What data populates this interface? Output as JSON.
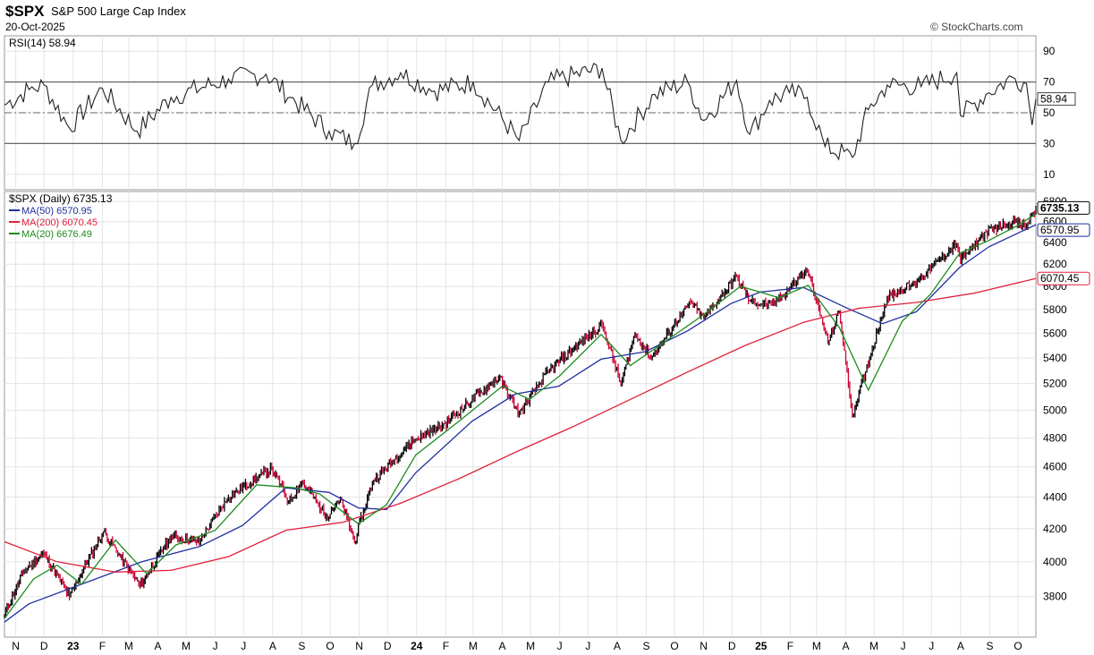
{
  "header": {
    "ticker": "$SPX",
    "name": "S&P 500 Large Cap Index",
    "date": "20-Oct-2025",
    "credit": "© StockCharts.com"
  },
  "colors": {
    "price_up": "#000000",
    "price_down": "#cc0033",
    "ma50": "#1f2fa0",
    "ma200": "#e0203c",
    "ma20": "#1e8a1e",
    "rsi_line": "#222222",
    "rsi_fill": "#4a7a4a",
    "grid": "#e4e4e4"
  },
  "chart_data": [
    {
      "type": "line",
      "title": "RSI(14) 58.94",
      "series": [
        {
          "name": "RSI(14)",
          "x": [
            "2022-10-20",
            "2022-11-15",
            "2022-12-01",
            "2022-12-28",
            "2023-02-01",
            "2023-03-10",
            "2023-04-15",
            "2023-06-15",
            "2023-07-25",
            "2023-08-20",
            "2023-09-30",
            "2023-10-27",
            "2023-11-15",
            "2023-12-15",
            "2024-01-20",
            "2024-03-01",
            "2024-04-19",
            "2024-05-20",
            "2024-07-16",
            "2024-08-05",
            "2024-09-10",
            "2024-10-15",
            "2024-11-01",
            "2024-12-06",
            "2024-12-20",
            "2025-01-10",
            "2025-01-31",
            "2025-02-19",
            "2025-03-10",
            "2025-04-08",
            "2025-04-25",
            "2025-05-15",
            "2025-06-20",
            "2025-07-28",
            "2025-08-01",
            "2025-08-28",
            "2025-09-25",
            "2025-10-10",
            "2025-10-16",
            "2025-10-20"
          ],
          "values": [
            55,
            65,
            68,
            40,
            66,
            38,
            60,
            72,
            75,
            60,
            38,
            30,
            68,
            76,
            64,
            70,
            32,
            70,
            79,
            32,
            62,
            70,
            45,
            71,
            36,
            58,
            63,
            60,
            28,
            21,
            52,
            68,
            67,
            76,
            48,
            62,
            73,
            69,
            42,
            58.94
          ]
        }
      ],
      "yticks": [
        10,
        30,
        50,
        70,
        90
      ],
      "ylim": [
        0,
        100
      ],
      "overbought": 70,
      "oversold": 30,
      "midline": 50,
      "last_value_label": "58.94"
    },
    {
      "type": "line",
      "title": "$SPX (Daily) 6735.13",
      "ylim": [
        3580,
        6900
      ],
      "yscale": "log",
      "yticks": [
        3800,
        4000,
        4200,
        4400,
        4600,
        4800,
        5000,
        5200,
        5400,
        5600,
        5800,
        6000,
        6200,
        6400,
        6600,
        6800
      ],
      "xtick_labels": [
        "N",
        "D",
        "23",
        "F",
        "M",
        "A",
        "M",
        "J",
        "J",
        "A",
        "S",
        "O",
        "N",
        "D",
        "24",
        "F",
        "M",
        "A",
        "M",
        "J",
        "J",
        "A",
        "S",
        "O",
        "N",
        "D",
        "25",
        "F",
        "M",
        "A",
        "M",
        "J",
        "J",
        "A",
        "S",
        "O"
      ],
      "xtick_dates": [
        "2022-11-01",
        "2022-12-01",
        "2023-01-01",
        "2023-02-01",
        "2023-03-01",
        "2023-04-01",
        "2023-05-01",
        "2023-06-01",
        "2023-07-01",
        "2023-08-01",
        "2023-09-01",
        "2023-10-01",
        "2023-11-01",
        "2023-12-01",
        "2024-01-01",
        "2024-02-01",
        "2024-03-01",
        "2024-04-01",
        "2024-05-01",
        "2024-06-01",
        "2024-07-01",
        "2024-08-01",
        "2024-09-01",
        "2024-10-01",
        "2024-11-01",
        "2024-12-01",
        "2025-01-01",
        "2025-02-01",
        "2025-03-01",
        "2025-04-01",
        "2025-05-01",
        "2025-06-01",
        "2025-07-01",
        "2025-08-01",
        "2025-09-01",
        "2025-10-01"
      ],
      "xlim": [
        "2022-10-20",
        "2025-10-20"
      ],
      "legend": [
        {
          "label": "MA(50) 6570.95",
          "color": "#1f2fa0"
        },
        {
          "label": "MA(200) 6070.45",
          "color": "#e0203c"
        },
        {
          "label": "MA(20) 6676.49",
          "color": "#1e8a1e"
        }
      ],
      "series": [
        {
          "name": "$SPX (Daily)",
          "x": [
            "2022-10-20",
            "2022-11-10",
            "2022-12-01",
            "2022-12-28",
            "2023-02-02",
            "2023-03-13",
            "2023-04-15",
            "2023-05-15",
            "2023-06-15",
            "2023-07-31",
            "2023-08-18",
            "2023-09-01",
            "2023-09-27",
            "2023-10-12",
            "2023-10-27",
            "2023-11-15",
            "2023-12-28",
            "2024-01-31",
            "2024-03-28",
            "2024-04-19",
            "2024-05-20",
            "2024-07-16",
            "2024-08-05",
            "2024-08-20",
            "2024-09-06",
            "2024-10-18",
            "2024-11-01",
            "2024-12-06",
            "2024-12-20",
            "2025-01-13",
            "2025-02-19",
            "2025-03-13",
            "2025-03-25",
            "2025-04-08",
            "2025-04-22",
            "2025-05-15",
            "2025-06-13",
            "2025-07-28",
            "2025-08-01",
            "2025-08-28",
            "2025-09-25",
            "2025-10-10",
            "2025-10-20"
          ],
          "values": [
            3700,
            3950,
            4050,
            3800,
            4180,
            3860,
            4150,
            4120,
            4400,
            4590,
            4370,
            4500,
            4280,
            4380,
            4120,
            4500,
            4780,
            4900,
            5250,
            4970,
            5300,
            5670,
            5190,
            5600,
            5400,
            5860,
            5720,
            6090,
            5870,
            5830,
            6150,
            5520,
            5780,
            4950,
            5290,
            5900,
            6030,
            6390,
            6230,
            6500,
            6600,
            6550,
            6735.13
          ]
        },
        {
          "name": "MA(50)",
          "x": [
            "2022-10-20",
            "2022-11-15",
            "2023-01-15",
            "2023-03-15",
            "2023-05-15",
            "2023-06-30",
            "2023-08-15",
            "2023-09-30",
            "2023-10-31",
            "2023-11-30",
            "2023-12-31",
            "2024-02-29",
            "2024-04-15",
            "2024-05-31",
            "2024-07-15",
            "2024-08-31",
            "2024-10-15",
            "2024-11-30",
            "2024-12-31",
            "2025-02-15",
            "2025-03-31",
            "2025-05-10",
            "2025-06-15",
            "2025-07-31",
            "2025-08-31",
            "2025-10-20"
          ],
          "values": [
            3660,
            3760,
            3880,
            4000,
            4090,
            4220,
            4460,
            4430,
            4330,
            4320,
            4560,
            4920,
            5120,
            5180,
            5390,
            5450,
            5620,
            5850,
            5950,
            5990,
            5820,
            5680,
            5780,
            6170,
            6360,
            6570.95
          ]
        },
        {
          "name": "MA(200)",
          "x": [
            "2022-10-20",
            "2022-12-15",
            "2023-02-15",
            "2023-04-15",
            "2023-06-15",
            "2023-08-15",
            "2023-10-15",
            "2023-12-15",
            "2024-02-15",
            "2024-04-15",
            "2024-06-15",
            "2024-08-15",
            "2024-10-15",
            "2024-12-15",
            "2025-02-15",
            "2025-04-15",
            "2025-06-15",
            "2025-08-15",
            "2025-10-20"
          ],
          "values": [
            4120,
            4000,
            3940,
            3950,
            4030,
            4190,
            4240,
            4360,
            4520,
            4700,
            4880,
            5080,
            5290,
            5500,
            5690,
            5810,
            5860,
            5940,
            6070.45
          ]
        },
        {
          "name": "MA(20)",
          "x": [
            "2022-10-20",
            "2022-11-20",
            "2022-12-15",
            "2023-01-10",
            "2023-02-15",
            "2023-03-20",
            "2023-04-20",
            "2023-06-01",
            "2023-07-15",
            "2023-08-25",
            "2023-09-20",
            "2023-10-31",
            "2023-11-30",
            "2023-12-31",
            "2024-02-15",
            "2024-04-01",
            "2024-04-30",
            "2024-06-01",
            "2024-07-15",
            "2024-08-15",
            "2024-09-15",
            "2024-10-31",
            "2024-12-10",
            "2024-12-31",
            "2025-01-20",
            "2025-02-20",
            "2025-03-25",
            "2025-04-25",
            "2025-05-31",
            "2025-06-30",
            "2025-07-31",
            "2025-08-31",
            "2025-09-30",
            "2025-10-20"
          ],
          "values": [
            3680,
            3900,
            3980,
            3870,
            4130,
            3930,
            4100,
            4190,
            4480,
            4460,
            4420,
            4230,
            4350,
            4680,
            4920,
            5180,
            5080,
            5260,
            5590,
            5340,
            5500,
            5750,
            6000,
            5950,
            5900,
            6010,
            5650,
            5150,
            5700,
            5930,
            6300,
            6420,
            6560,
            6676.49
          ]
        }
      ],
      "last_labels": [
        "6735.13",
        "6570.95",
        "6070.45"
      ]
    }
  ]
}
